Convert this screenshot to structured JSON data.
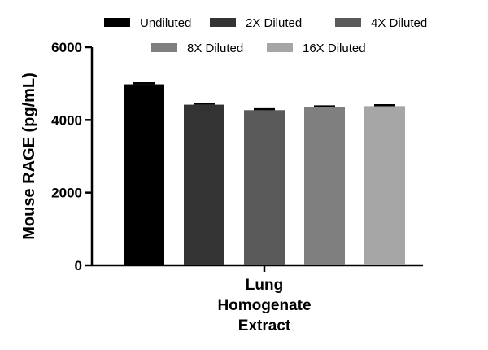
{
  "chart_data": {
    "type": "bar",
    "categories": [
      "Lung Homogenate Extract"
    ],
    "category_lines": [
      "Lung",
      "Homogenate",
      "Extract"
    ],
    "series": [
      {
        "name": "Undiluted",
        "values": [
          4980
        ],
        "error": [
          30
        ],
        "color": "#000000"
      },
      {
        "name": "2X Diluted",
        "values": [
          4420
        ],
        "error": [
          30
        ],
        "color": "#333333"
      },
      {
        "name": "4X Diluted",
        "values": [
          4270
        ],
        "error": [
          25
        ],
        "color": "#5a5a5a"
      },
      {
        "name": "8X Diluted",
        "values": [
          4350
        ],
        "error": [
          25
        ],
        "color": "#7f7f7f"
      },
      {
        "name": "16X Diluted",
        "values": [
          4380
        ],
        "error": [
          25
        ],
        "color": "#a6a6a6"
      }
    ],
    "ylabel": "Mouse RAGE (pg/mL)",
    "xlabel": "",
    "ylim": [
      0,
      6000
    ],
    "yticks": [
      0,
      2000,
      4000,
      6000
    ],
    "grid": false,
    "legend_position": "top"
  }
}
